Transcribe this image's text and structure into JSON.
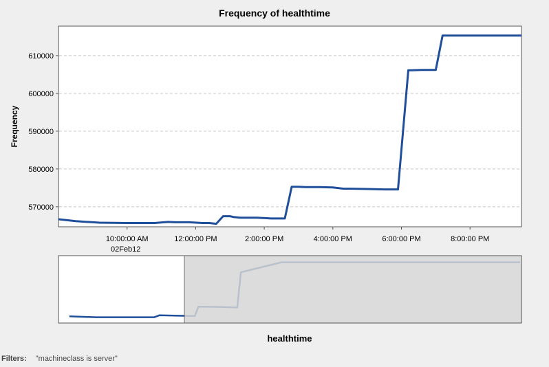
{
  "chart_data": {
    "type": "line",
    "title": "Frequency of healthtime",
    "xlabel": "healthtime",
    "ylabel": "Frequency",
    "x_unit": "hours (time of day, 02Feb12)",
    "xlim": [
      8.0,
      21.5
    ],
    "ylim": [
      564700,
      617800
    ],
    "y_ticks": [
      570000,
      580000,
      590000,
      600000,
      610000
    ],
    "y_tick_labels": [
      "570000",
      "580000",
      "590000",
      "600000",
      "610000"
    ],
    "x_ticks": [
      10,
      12,
      14,
      16,
      18,
      20
    ],
    "x_tick_labels": [
      "10:00:00 AM",
      "12:00:00 PM",
      "2:00:00 PM",
      "4:00:00 PM",
      "6:00:00 PM",
      "8:00:00 PM"
    ],
    "x_date_label": "02Feb12",
    "grid": "horizontal dashed",
    "color": "#1f4e9a",
    "series": [
      {
        "x": [
          8.0,
          8.5,
          9.2,
          10.0,
          10.8,
          11.2,
          11.4,
          11.8,
          12.2,
          12.4,
          12.6,
          12.8,
          13.0,
          13.1,
          13.3,
          13.5,
          13.8,
          14.2,
          14.6,
          14.8,
          15.0,
          15.2,
          15.6,
          16.0,
          16.3,
          16.5,
          17.0,
          17.5,
          17.9,
          18.2,
          18.3,
          18.6,
          19.0,
          19.2,
          19.3,
          19.5,
          20.0,
          20.5,
          21.0,
          21.5
        ],
        "y": [
          566700,
          566200,
          565800,
          565700,
          565700,
          566000,
          565900,
          565900,
          565700,
          565700,
          565500,
          567500,
          567500,
          567300,
          567100,
          567100,
          567100,
          566900,
          566900,
          575300,
          575300,
          575200,
          575200,
          575100,
          574800,
          574800,
          574700,
          574600,
          574600,
          606100,
          606100,
          606200,
          606200,
          615300,
          615300,
          615300,
          615300,
          615300,
          615300,
          615300
        ]
      }
    ]
  },
  "overview": {
    "series_x": [
      -4.0,
      -2.5,
      -1.0,
      0.8,
      1.1,
      2.5,
      3.1,
      3.3,
      4.5,
      5.5,
      5.7,
      8.0,
      21.5
    ],
    "series_y": [
      566500,
      565700,
      565700,
      565700,
      567500,
      567000,
      566900,
      575300,
      575000,
      574500,
      606200,
      615300,
      615300
    ]
  },
  "filters": {
    "label": "Filters:",
    "value": "\"machineclass is server\""
  }
}
